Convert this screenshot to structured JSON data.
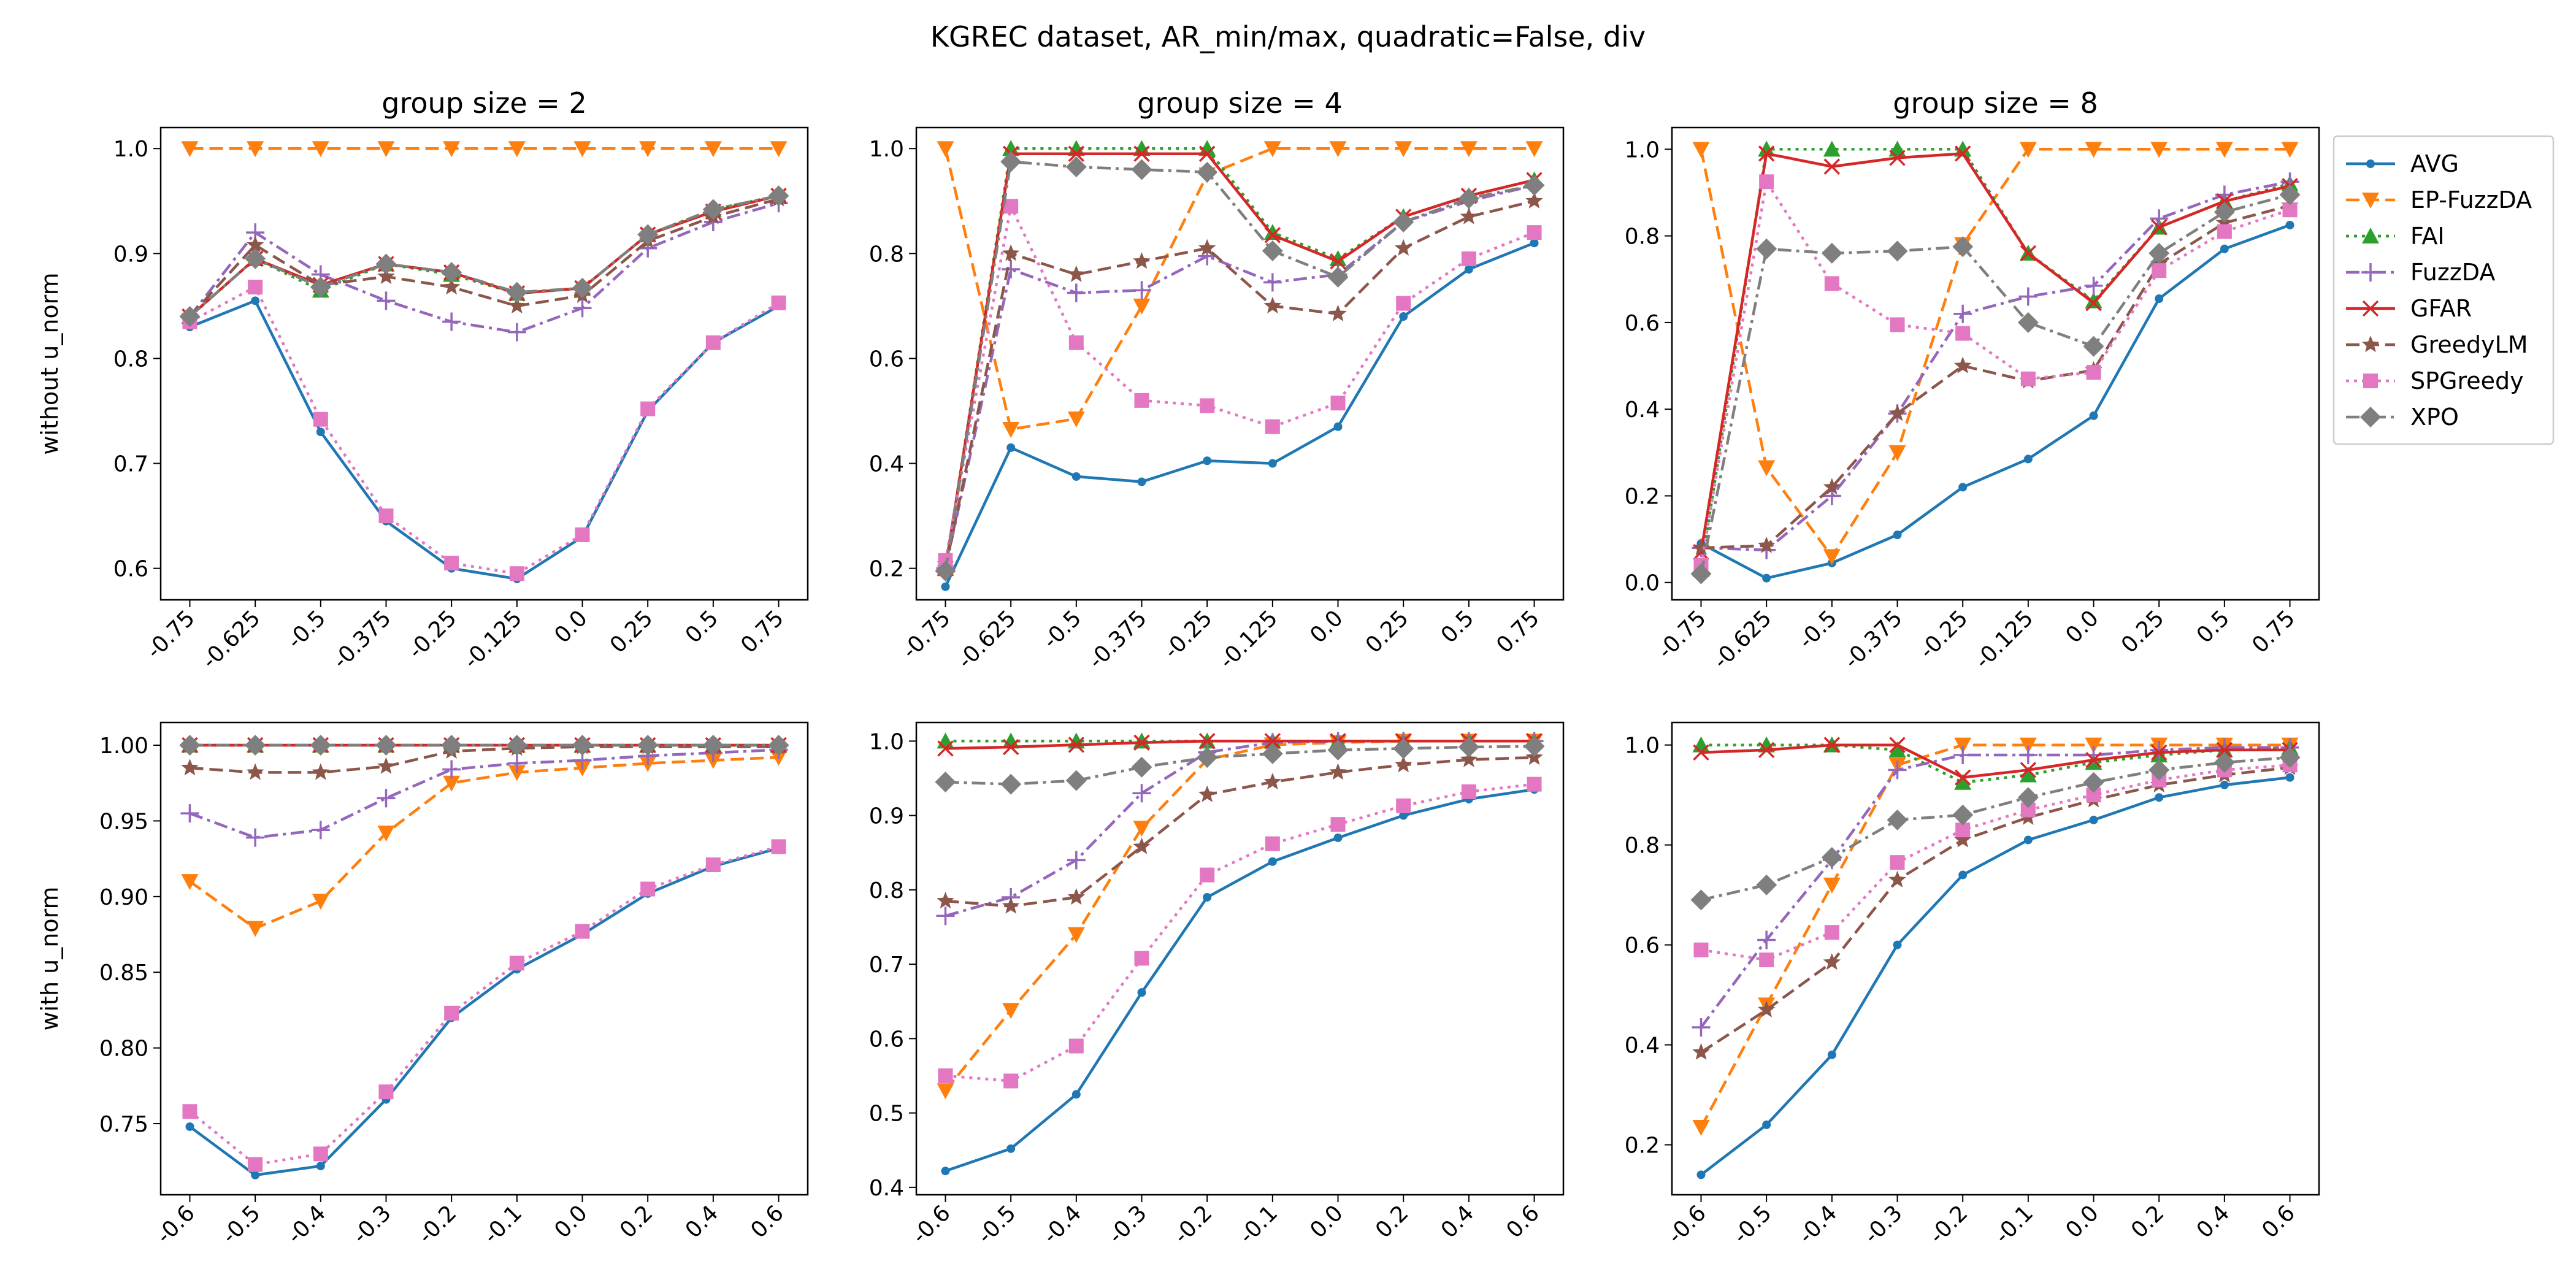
{
  "figure": {
    "suptitle": "KGREC dataset, AR_min/max, quadratic=False, div"
  },
  "legend_entries": [
    {
      "name": "AVG",
      "color": "#1f77b4",
      "dash": "solid",
      "marker": "dot"
    },
    {
      "name": "EP-FuzzDA",
      "color": "#ff7f0e",
      "dash": "dashed",
      "marker": "triangle-down"
    },
    {
      "name": "FAI",
      "color": "#2ca02c",
      "dash": "dotted",
      "marker": "triangle-up"
    },
    {
      "name": "FuzzDA",
      "color": "#9467bd",
      "dash": "dashdot",
      "marker": "plus"
    },
    {
      "name": "GFAR",
      "color": "#d62728",
      "dash": "solid",
      "marker": "x"
    },
    {
      "name": "GreedyLM",
      "color": "#8c564b",
      "dash": "dashed",
      "marker": "star"
    },
    {
      "name": "SPGreedy",
      "color": "#e377c2",
      "dash": "dotted",
      "marker": "square"
    },
    {
      "name": "XPO",
      "color": "#7f7f7f",
      "dash": "dashdot",
      "marker": "diamond"
    }
  ],
  "chart_data": [
    {
      "type": "line",
      "title": "group size = 2",
      "ylabel": "without u_norm",
      "categories": [
        "-0.75",
        "-0.625",
        "-0.5",
        "-0.375",
        "-0.25",
        "-0.125",
        "0.0",
        "0.25",
        "0.5",
        "0.75"
      ],
      "ylim": [
        0.57,
        1.02
      ],
      "yticks": [
        0.6,
        0.7,
        0.8,
        0.9,
        1.0
      ],
      "ytick_labels": [
        "0.6",
        "0.7",
        "0.8",
        "0.9",
        "1.0"
      ],
      "series": [
        {
          "name": "AVG",
          "values": [
            0.83,
            0.855,
            0.73,
            0.645,
            0.6,
            0.59,
            0.63,
            0.75,
            0.815,
            0.85
          ]
        },
        {
          "name": "EP-FuzzDA",
          "values": [
            1.0,
            1.0,
            1.0,
            1.0,
            1.0,
            1.0,
            1.0,
            1.0,
            1.0,
            1.0
          ]
        },
        {
          "name": "FAI",
          "values": [
            0.84,
            0.895,
            0.865,
            0.89,
            0.88,
            0.862,
            0.867,
            0.918,
            0.942,
            0.955
          ]
        },
        {
          "name": "FuzzDA",
          "values": [
            0.84,
            0.92,
            0.88,
            0.855,
            0.835,
            0.825,
            0.848,
            0.905,
            0.93,
            0.948
          ]
        },
        {
          "name": "GFAR",
          "values": [
            0.84,
            0.895,
            0.87,
            0.89,
            0.882,
            0.862,
            0.867,
            0.918,
            0.94,
            0.955
          ]
        },
        {
          "name": "GreedyLM",
          "values": [
            0.84,
            0.908,
            0.87,
            0.878,
            0.868,
            0.85,
            0.86,
            0.912,
            0.935,
            0.952
          ]
        },
        {
          "name": "SPGreedy",
          "values": [
            0.835,
            0.868,
            0.742,
            0.65,
            0.605,
            0.595,
            0.632,
            0.752,
            0.815,
            0.853
          ]
        },
        {
          "name": "XPO",
          "values": [
            0.84,
            0.895,
            0.868,
            0.89,
            0.882,
            0.863,
            0.867,
            0.918,
            0.942,
            0.955
          ]
        }
      ]
    },
    {
      "type": "line",
      "title": "group size = 4",
      "ylabel": "",
      "categories": [
        "-0.75",
        "-0.625",
        "-0.5",
        "-0.375",
        "-0.25",
        "-0.125",
        "0.0",
        "0.25",
        "0.5",
        "0.75"
      ],
      "ylim": [
        0.14,
        1.04
      ],
      "yticks": [
        0.2,
        0.4,
        0.6,
        0.8,
        1.0
      ],
      "ytick_labels": [
        "0.2",
        "0.4",
        "0.6",
        "0.8",
        "1.0"
      ],
      "series": [
        {
          "name": "AVG",
          "values": [
            0.165,
            0.43,
            0.375,
            0.365,
            0.405,
            0.4,
            0.47,
            0.68,
            0.77,
            0.82
          ]
        },
        {
          "name": "EP-FuzzDA",
          "values": [
            1.0,
            0.465,
            0.485,
            0.7,
            0.95,
            1.0,
            1.0,
            1.0,
            1.0,
            1.0
          ]
        },
        {
          "name": "FAI",
          "values": [
            0.2,
            1.0,
            1.0,
            1.0,
            1.0,
            0.84,
            0.79,
            0.87,
            0.91,
            0.94
          ]
        },
        {
          "name": "FuzzDA",
          "values": [
            0.2,
            0.77,
            0.725,
            0.73,
            0.795,
            0.745,
            0.76,
            0.86,
            0.9,
            0.93
          ]
        },
        {
          "name": "GFAR",
          "values": [
            0.2,
            0.99,
            0.99,
            0.99,
            0.99,
            0.835,
            0.785,
            0.87,
            0.91,
            0.94
          ]
        },
        {
          "name": "GreedyLM",
          "values": [
            0.2,
            0.8,
            0.76,
            0.785,
            0.81,
            0.7,
            0.685,
            0.81,
            0.87,
            0.9
          ]
        },
        {
          "name": "SPGreedy",
          "values": [
            0.215,
            0.89,
            0.63,
            0.52,
            0.51,
            0.47,
            0.515,
            0.705,
            0.79,
            0.84
          ]
        },
        {
          "name": "XPO",
          "values": [
            0.195,
            0.975,
            0.965,
            0.96,
            0.955,
            0.805,
            0.755,
            0.86,
            0.905,
            0.93
          ]
        }
      ]
    },
    {
      "type": "line",
      "title": "group size = 8",
      "ylabel": "",
      "categories": [
        "-0.75",
        "-0.625",
        "-0.5",
        "-0.375",
        "-0.25",
        "-0.125",
        "0.0",
        "0.25",
        "0.5",
        "0.75"
      ],
      "ylim": [
        -0.04,
        1.05
      ],
      "yticks": [
        0.0,
        0.2,
        0.4,
        0.6,
        0.8,
        1.0
      ],
      "ytick_labels": [
        "0.0",
        "0.2",
        "0.4",
        "0.6",
        "0.8",
        "1.0"
      ],
      "series": [
        {
          "name": "AVG",
          "values": [
            0.09,
            0.01,
            0.045,
            0.11,
            0.22,
            0.285,
            0.385,
            0.655,
            0.77,
            0.825
          ]
        },
        {
          "name": "EP-FuzzDA",
          "values": [
            1.0,
            0.265,
            0.06,
            0.3,
            0.78,
            1.0,
            1.0,
            1.0,
            1.0,
            1.0
          ]
        },
        {
          "name": "FAI",
          "values": [
            0.03,
            1.0,
            1.0,
            1.0,
            1.0,
            0.76,
            0.65,
            0.82,
            0.88,
            0.92
          ]
        },
        {
          "name": "FuzzDA",
          "values": [
            0.08,
            0.075,
            0.2,
            0.39,
            0.62,
            0.66,
            0.685,
            0.84,
            0.895,
            0.925
          ]
        },
        {
          "name": "GFAR",
          "values": [
            0.07,
            0.99,
            0.96,
            0.98,
            0.99,
            0.76,
            0.645,
            0.82,
            0.88,
            0.915
          ]
        },
        {
          "name": "GreedyLM",
          "values": [
            0.08,
            0.085,
            0.22,
            0.39,
            0.5,
            0.465,
            0.49,
            0.735,
            0.83,
            0.87
          ]
        },
        {
          "name": "SPGreedy",
          "values": [
            0.04,
            0.925,
            0.69,
            0.595,
            0.575,
            0.47,
            0.485,
            0.72,
            0.81,
            0.86
          ]
        },
        {
          "name": "XPO",
          "values": [
            0.02,
            0.77,
            0.76,
            0.765,
            0.775,
            0.6,
            0.545,
            0.76,
            0.855,
            0.895
          ]
        }
      ]
    },
    {
      "type": "line",
      "title": "",
      "ylabel": "with u_norm",
      "categories": [
        "-0.6",
        "-0.5",
        "-0.4",
        "-0.3",
        "-0.2",
        "-0.1",
        "0.0",
        "0.2",
        "0.4",
        "0.6"
      ],
      "ylim": [
        0.703,
        1.015
      ],
      "yticks": [
        0.75,
        0.8,
        0.85,
        0.9,
        0.95,
        1.0
      ],
      "ytick_labels": [
        "0.75",
        "0.80",
        "0.85",
        "0.90",
        "0.95",
        "1.00"
      ],
      "series": [
        {
          "name": "AVG",
          "values": [
            0.748,
            0.716,
            0.722,
            0.766,
            0.82,
            0.852,
            0.875,
            0.902,
            0.92,
            0.932
          ]
        },
        {
          "name": "EP-FuzzDA",
          "values": [
            0.91,
            0.879,
            0.897,
            0.942,
            0.975,
            0.982,
            0.985,
            0.988,
            0.99,
            0.992
          ]
        },
        {
          "name": "FAI",
          "values": [
            1.0,
            1.0,
            1.0,
            1.0,
            1.0,
            1.0,
            1.0,
            1.0,
            1.0,
            1.0
          ]
        },
        {
          "name": "FuzzDA",
          "values": [
            0.955,
            0.939,
            0.944,
            0.965,
            0.984,
            0.988,
            0.99,
            0.993,
            0.995,
            0.997
          ]
        },
        {
          "name": "GFAR",
          "values": [
            1.0,
            1.0,
            1.0,
            1.0,
            1.0,
            1.0,
            1.0,
            1.0,
            1.0,
            1.0
          ]
        },
        {
          "name": "GreedyLM",
          "values": [
            0.985,
            0.982,
            0.982,
            0.986,
            0.996,
            0.998,
            0.999,
            0.999,
            0.999,
            0.999
          ]
        },
        {
          "name": "SPGreedy",
          "values": [
            0.758,
            0.723,
            0.73,
            0.771,
            0.823,
            0.856,
            0.877,
            0.905,
            0.921,
            0.933
          ]
        },
        {
          "name": "XPO",
          "values": [
            1.0,
            1.0,
            1.0,
            1.0,
            1.0,
            1.0,
            1.0,
            1.0,
            1.0,
            1.0
          ]
        }
      ]
    },
    {
      "type": "line",
      "title": "",
      "ylabel": "",
      "categories": [
        "-0.6",
        "-0.5",
        "-0.4",
        "-0.3",
        "-0.2",
        "-0.1",
        "0.0",
        "0.2",
        "0.4",
        "0.6"
      ],
      "ylim": [
        0.39,
        1.025
      ],
      "yticks": [
        0.4,
        0.5,
        0.6,
        0.7,
        0.8,
        0.9,
        1.0
      ],
      "ytick_labels": [
        "0.4",
        "0.5",
        "0.6",
        "0.7",
        "0.8",
        "0.9",
        "1.0"
      ],
      "series": [
        {
          "name": "AVG",
          "values": [
            0.422,
            0.452,
            0.525,
            0.662,
            0.79,
            0.838,
            0.87,
            0.9,
            0.922,
            0.935
          ]
        },
        {
          "name": "EP-FuzzDA",
          "values": [
            0.53,
            0.638,
            0.74,
            0.883,
            0.975,
            0.995,
            0.998,
            1.0,
            1.0,
            1.0
          ]
        },
        {
          "name": "FAI",
          "values": [
            1.0,
            1.0,
            1.0,
            1.0,
            1.0,
            1.0,
            1.0,
            1.0,
            1.0,
            1.0
          ]
        },
        {
          "name": "FuzzDA",
          "values": [
            0.765,
            0.79,
            0.84,
            0.93,
            0.985,
            0.998,
            1.0,
            1.0,
            1.0,
            1.0
          ]
        },
        {
          "name": "GFAR",
          "values": [
            0.99,
            0.992,
            0.995,
            0.998,
            1.0,
            1.0,
            1.0,
            1.0,
            1.0,
            1.0
          ]
        },
        {
          "name": "GreedyLM",
          "values": [
            0.785,
            0.778,
            0.79,
            0.858,
            0.928,
            0.945,
            0.958,
            0.968,
            0.975,
            0.978
          ]
        },
        {
          "name": "SPGreedy",
          "values": [
            0.55,
            0.543,
            0.59,
            0.708,
            0.82,
            0.862,
            0.888,
            0.913,
            0.932,
            0.942
          ]
        },
        {
          "name": "XPO",
          "values": [
            0.945,
            0.942,
            0.947,
            0.965,
            0.978,
            0.983,
            0.988,
            0.99,
            0.992,
            0.993
          ]
        }
      ]
    },
    {
      "type": "line",
      "title": "",
      "ylabel": "",
      "categories": [
        "-0.6",
        "-0.5",
        "-0.4",
        "-0.3",
        "-0.2",
        "-0.1",
        "0.0",
        "0.2",
        "0.4",
        "0.6"
      ],
      "ylim": [
        0.1,
        1.045
      ],
      "yticks": [
        0.2,
        0.4,
        0.6,
        0.8,
        1.0
      ],
      "ytick_labels": [
        "0.2",
        "0.4",
        "0.6",
        "0.8",
        "1.0"
      ],
      "series": [
        {
          "name": "AVG",
          "values": [
            0.14,
            0.24,
            0.38,
            0.6,
            0.74,
            0.81,
            0.85,
            0.895,
            0.92,
            0.935
          ]
        },
        {
          "name": "EP-FuzzDA",
          "values": [
            0.235,
            0.48,
            0.72,
            0.96,
            1.0,
            1.0,
            1.0,
            1.0,
            1.0,
            1.0
          ]
        },
        {
          "name": "FAI",
          "values": [
            1.0,
            1.0,
            1.0,
            0.99,
            0.925,
            0.94,
            0.965,
            0.98,
            0.99,
            0.995
          ]
        },
        {
          "name": "FuzzDA",
          "values": [
            0.435,
            0.61,
            0.77,
            0.95,
            0.98,
            0.98,
            0.98,
            0.99,
            0.995,
            0.995
          ]
        },
        {
          "name": "GFAR",
          "values": [
            0.985,
            0.99,
            1.0,
            1.0,
            0.935,
            0.95,
            0.97,
            0.985,
            0.99,
            0.99
          ]
        },
        {
          "name": "GreedyLM",
          "values": [
            0.385,
            0.47,
            0.565,
            0.73,
            0.81,
            0.855,
            0.89,
            0.92,
            0.94,
            0.955
          ]
        },
        {
          "name": "SPGreedy",
          "values": [
            0.59,
            0.57,
            0.625,
            0.765,
            0.83,
            0.87,
            0.9,
            0.93,
            0.95,
            0.96
          ]
        },
        {
          "name": "XPO",
          "values": [
            0.69,
            0.72,
            0.775,
            0.85,
            0.86,
            0.895,
            0.925,
            0.95,
            0.965,
            0.975
          ]
        }
      ]
    }
  ]
}
